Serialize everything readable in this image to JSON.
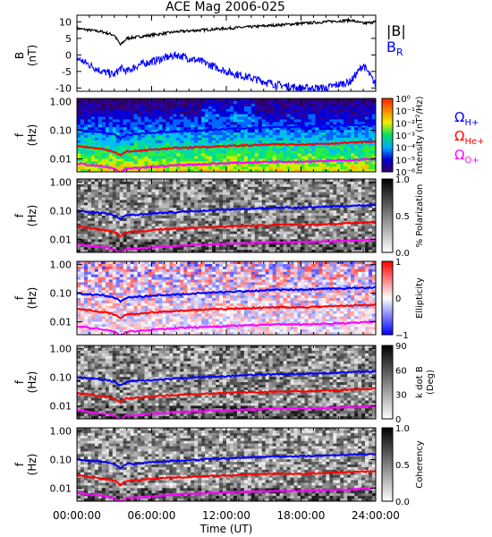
{
  "title": "ACE Mag 2006-025",
  "xlabel": "Time (UT)",
  "xticks": [
    "00:00:00",
    "06:00:00",
    "12:00:00",
    "18:00:00",
    "24:00:00"
  ],
  "colors": {
    "B": "#000000",
    "BR": "#0000ff",
    "OmegaH": "#0000ff",
    "OmegaHe": "#ff0000",
    "OmegaO": "#ff00ff"
  },
  "chart_data": [
    {
      "type": "line",
      "panel": "field",
      "ylabel": "B (nT)",
      "ylabel_top": "B",
      "ylabel_unit": "(nT)",
      "yticks": [
        "10",
        "5",
        "0",
        "-5",
        "-10"
      ],
      "ylim": [
        -11,
        12
      ],
      "x_unit": "hours UT",
      "x": [
        0,
        1,
        2,
        3,
        3.5,
        4,
        5,
        6,
        8,
        10,
        12,
        14,
        16,
        18,
        20,
        22,
        23,
        24
      ],
      "series": [
        {
          "name": "|B|",
          "values": [
            8,
            7.5,
            7,
            6,
            3,
            5,
            5.5,
            6,
            7,
            7.5,
            8,
            8.5,
            9,
            9.5,
            10,
            10.5,
            9.5,
            10
          ]
        },
        {
          "name": "B",
          "sub": "R",
          "values": [
            -1,
            -3,
            -5,
            -6,
            -4,
            -5,
            -3,
            -2,
            0,
            -2,
            -5,
            -7,
            -9,
            -10,
            -10,
            -8,
            -3,
            -9
          ]
        }
      ],
      "legend": {
        "bmag": "|B|",
        "br_main": "B",
        "br_sub": "R"
      }
    },
    {
      "type": "heatmap",
      "panel": "intensity",
      "ylabel": "f (Hz)",
      "yticks": [
        "1.00",
        "0.10",
        "0.01"
      ],
      "colorbar": {
        "label": "Intensity (nT²/Hz)",
        "ticks": [
          "10⁰",
          "10⁻¹",
          "10⁻²",
          "10⁻³",
          "10⁻⁴",
          "10⁻⁵",
          "10⁻⁶"
        ],
        "range": [
          -6,
          0
        ]
      },
      "legend": [
        {
          "main": "Ω",
          "sub": "H+"
        },
        {
          "main": "Ω",
          "sub": "He+"
        },
        {
          "main": "Ω",
          "sub": "O+"
        }
      ]
    },
    {
      "type": "heatmap",
      "panel": "polarization",
      "ylabel": "f (Hz)",
      "yticks": [
        "1.00",
        "0.10",
        "0.01"
      ],
      "colorbar": {
        "label": "% Polarization",
        "ticks": [
          "1.0",
          "0.5",
          "0.0"
        ],
        "range": [
          0,
          1
        ]
      }
    },
    {
      "type": "heatmap",
      "panel": "ellipticity",
      "ylabel": "f (Hz)",
      "yticks": [
        "1.00",
        "0.10",
        "0.01"
      ],
      "colorbar": {
        "label": "Ellipticity",
        "ticks": [
          "1",
          "0",
          "−1"
        ],
        "range": [
          -1,
          1
        ]
      }
    },
    {
      "type": "heatmap",
      "panel": "kdotb",
      "ylabel": "f (Hz)",
      "yticks": [
        "1.00",
        "0.10",
        "0.01"
      ],
      "colorbar": {
        "label": "k dot B",
        "label2": "(Deg)",
        "ticks": [
          "90",
          "60",
          "30",
          "0"
        ],
        "range": [
          0,
          90
        ]
      }
    },
    {
      "type": "heatmap",
      "panel": "coherency",
      "ylabel": "f (Hz)",
      "yticks": [
        "1.00",
        "0.10",
        "0.01"
      ],
      "colorbar": {
        "label": "Coherency",
        "ticks": [
          "1.0",
          "0.5",
          "0.0"
        ],
        "range": [
          0,
          1
        ]
      }
    }
  ],
  "gyro_lines": {
    "x_unit": "hours UT",
    "x": [
      0,
      1,
      2,
      3,
      3.5,
      4,
      5,
      6,
      8,
      10,
      12,
      14,
      16,
      18,
      20,
      22,
      24
    ],
    "H": [
      0.1,
      0.09,
      0.085,
      0.07,
      0.05,
      0.07,
      0.075,
      0.08,
      0.09,
      0.1,
      0.11,
      0.12,
      0.13,
      0.13,
      0.14,
      0.15,
      0.16
    ],
    "He": [
      0.028,
      0.025,
      0.022,
      0.018,
      0.013,
      0.018,
      0.019,
      0.021,
      0.024,
      0.026,
      0.028,
      0.03,
      0.032,
      0.032,
      0.034,
      0.037,
      0.04
    ],
    "O": [
      0.007,
      0.006,
      0.0055,
      0.0045,
      0.0033,
      0.0045,
      0.0048,
      0.0052,
      0.006,
      0.0065,
      0.007,
      0.0075,
      0.008,
      0.008,
      0.0085,
      0.009,
      0.01
    ]
  }
}
